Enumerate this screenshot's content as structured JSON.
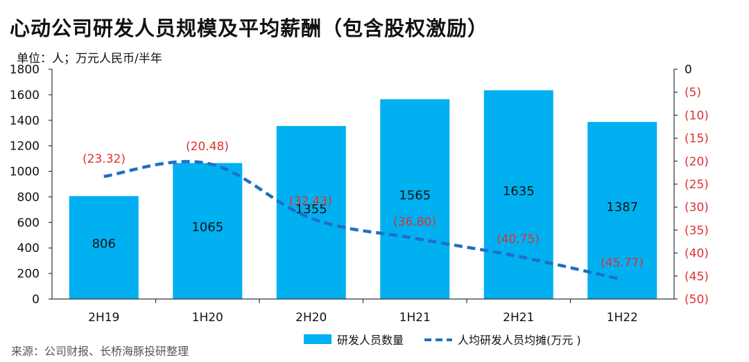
{
  "title": "心动公司研发人员规模及平均薪酬（包含股权激励）",
  "unit": "单位：人；万元人民币/半年",
  "source": "来源：公司财报、长桥海豚投研整理",
  "colors": {
    "bar": "#00b0f0",
    "line": "#1f6fc4",
    "right_axis": "#e03030"
  },
  "chart_data": {
    "type": "bar",
    "categories": [
      "2H19",
      "1H20",
      "2H20",
      "1H21",
      "2H21",
      "1H22"
    ],
    "series": [
      {
        "name": "研发人员数量",
        "type": "bar",
        "axis": "left",
        "values": [
          806,
          1065,
          1355,
          1565,
          1635,
          1387
        ],
        "labels": [
          "806",
          "1065",
          "1355",
          "1565",
          "1635",
          "1387"
        ]
      },
      {
        "name": "人均研发人员均摊(万元 )",
        "type": "line",
        "style": "dashed",
        "axis": "right",
        "values": [
          -23.32,
          -20.48,
          -32.43,
          -36.8,
          -40.75,
          -45.77
        ],
        "labels": [
          "(23.32)",
          "(20.48)",
          "(32.43)",
          "(36.80)",
          "(40.75)",
          "(45.77)"
        ]
      }
    ],
    "left_axis": {
      "range": [
        0,
        1800
      ],
      "ticks": [
        "0",
        "200",
        "400",
        "600",
        "800",
        "1000",
        "1200",
        "1400",
        "1600",
        "1800"
      ]
    },
    "right_axis": {
      "range": [
        -50,
        0
      ],
      "ticks": [
        "0",
        "(5)",
        "(10)",
        "(15)",
        "(20)",
        "(25)",
        "(30)",
        "(35)",
        "(40)",
        "(45)",
        "(50)"
      ]
    },
    "grid": false,
    "legend": "bottom"
  }
}
